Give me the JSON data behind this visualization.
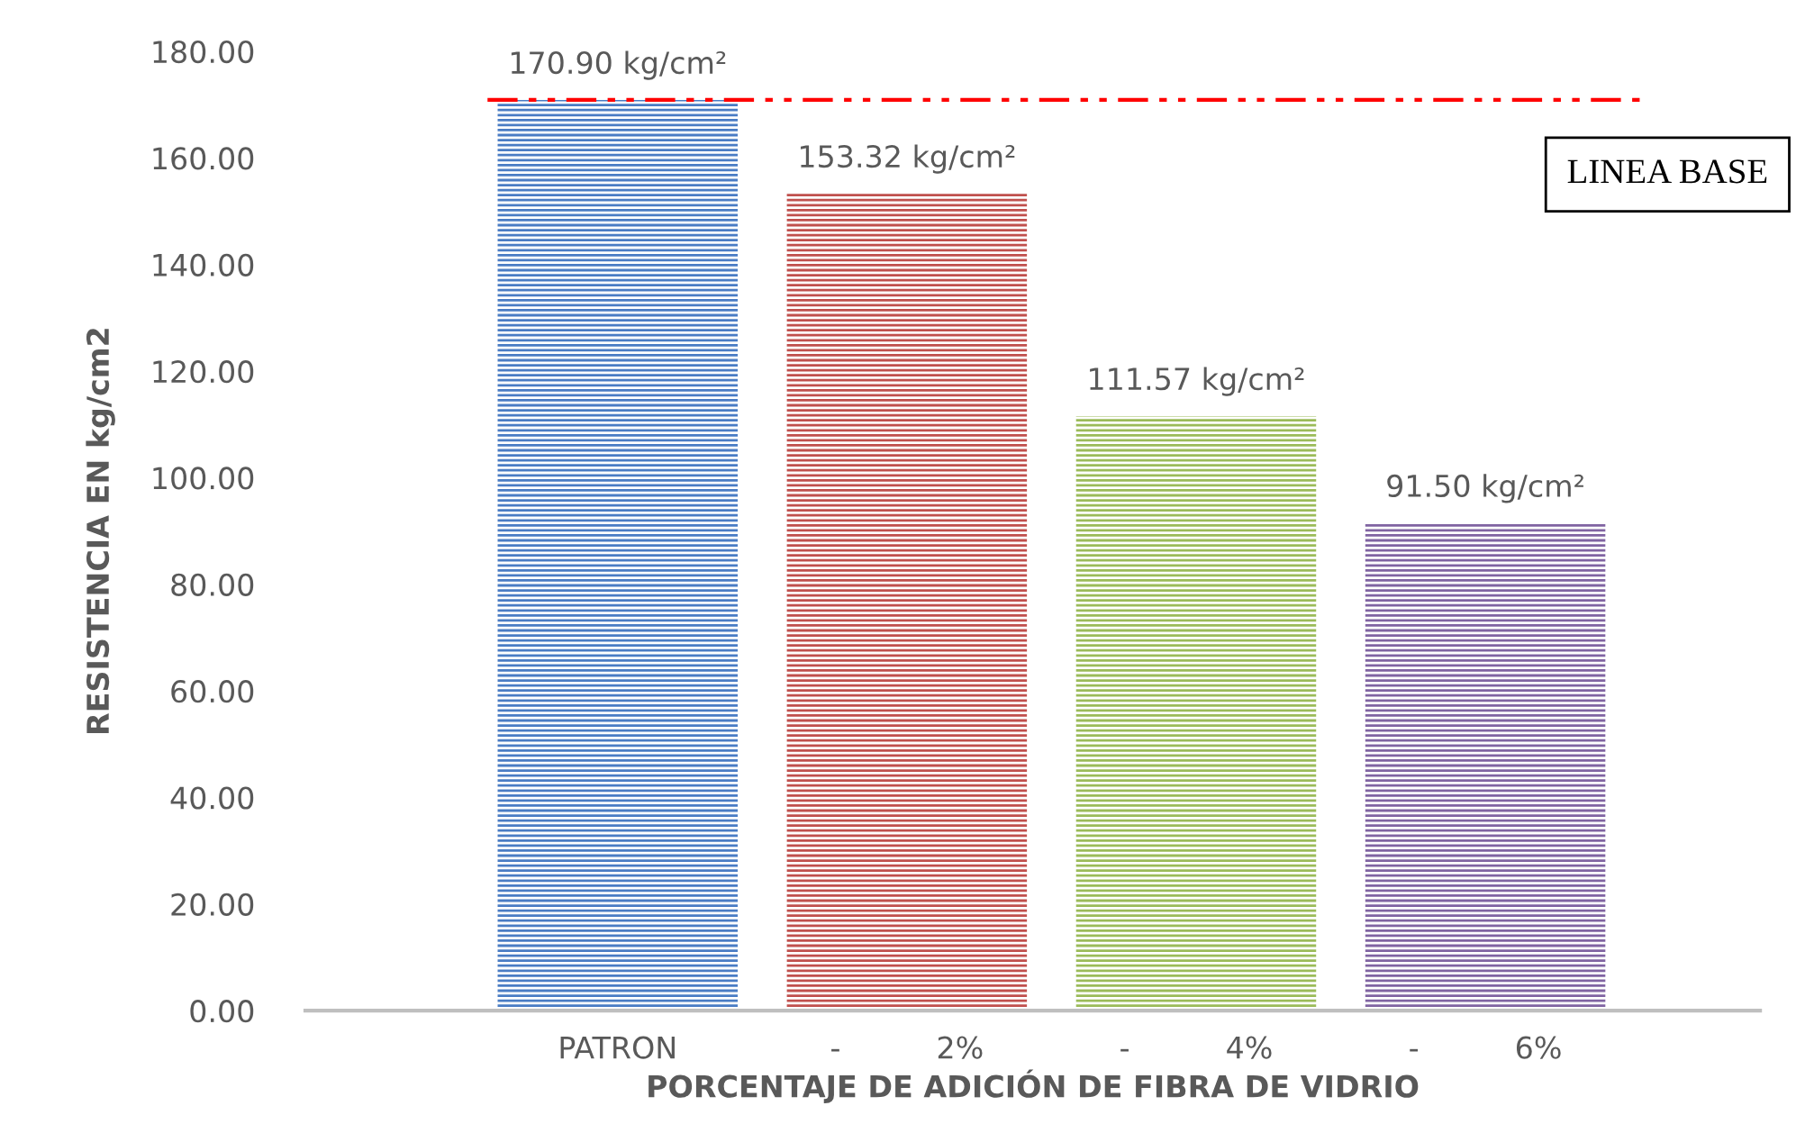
{
  "chart_data": {
    "type": "bar",
    "xlabel": "PORCENTAJE DE ADICIÓN DE FIBRA DE VIDRIO",
    "ylabel": "RESISTENCIA EN kg/cm2",
    "categories": [
      "PATRON",
      "-          2%",
      "-          4%",
      "-          6%"
    ],
    "values": [
      170.9,
      153.32,
      111.57,
      91.5
    ],
    "colors": [
      "#4a7cc4",
      "#c0504d",
      "#9bbb59",
      "#8064a2"
    ],
    "value_labels": [
      "170.90 kg/cm²",
      "153.32 kg/cm²",
      "111.57 kg/cm²",
      "91.50 kg/cm²"
    ],
    "ylim": [
      0,
      180
    ],
    "yticks": [
      {
        "value": 0,
        "label": "0.00"
      },
      {
        "value": 20,
        "label": "20.00"
      },
      {
        "value": 40,
        "label": "40.00"
      },
      {
        "value": 60,
        "label": "60.00"
      },
      {
        "value": 80,
        "label": "80.00"
      },
      {
        "value": 100,
        "label": "100.00"
      },
      {
        "value": 120,
        "label": "120.00"
      },
      {
        "value": 140,
        "label": "140.00"
      },
      {
        "value": 160,
        "label": "160.00"
      },
      {
        "value": 180,
        "label": "180.00"
      }
    ],
    "ref_lines": [
      {
        "axis": "y",
        "value": 170.9,
        "label": "LINEA BASE",
        "color": "#ff0000",
        "line_style": "dashed"
      }
    ],
    "grid": false,
    "legend": false
  }
}
